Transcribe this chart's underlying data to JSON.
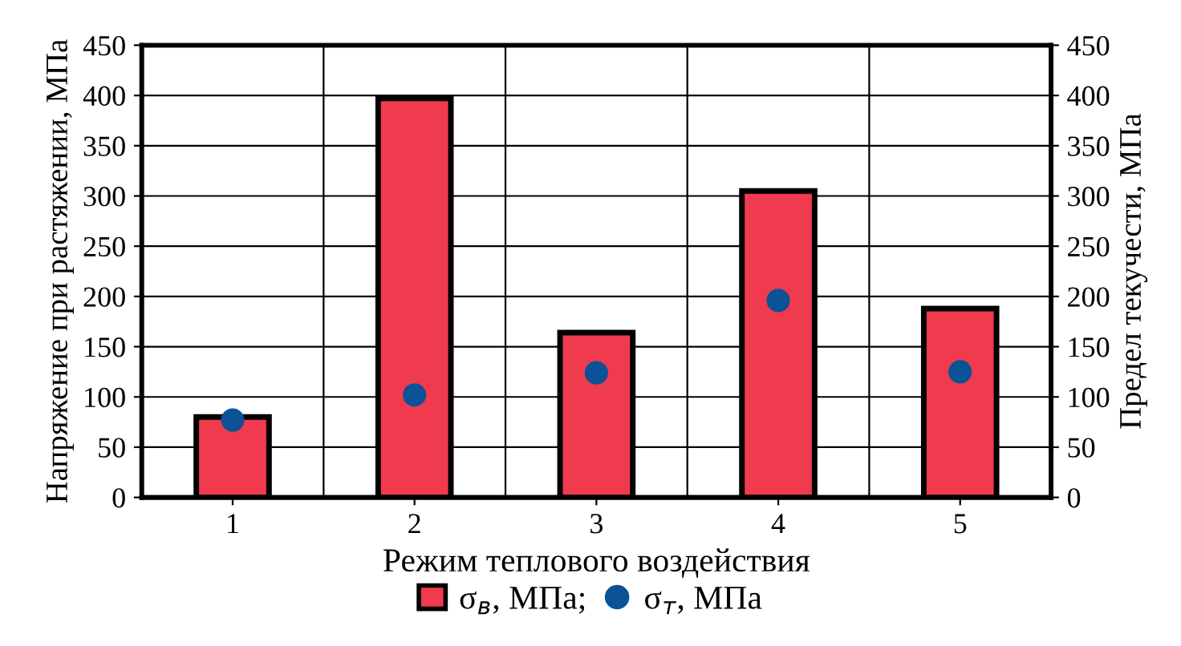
{
  "chart_data": {
    "type": "bar",
    "xlabel": "Режим теплового воздействия",
    "ylabel": "Напряжение при растяжении, МПа",
    "y2label": "Предел текучести, МПа",
    "categories": [
      "1",
      "2",
      "3",
      "4",
      "5"
    ],
    "series": [
      {
        "name": "σ$_{в}$, МПа;",
        "color": "#f03a4e",
        "values": [
          80,
          397,
          164,
          305,
          188
        ]
      },
      {
        "name": "σ$_{т}$, МПа",
        "type": "scatter",
        "axis": "y2",
        "color": "#0b5296",
        "values": [
          77,
          102,
          124,
          196,
          125
        ]
      }
    ],
    "ylim": [
      0,
      450
    ],
    "yticks": [
      0,
      50,
      100,
      150,
      200,
      250,
      300,
      350,
      400,
      450
    ],
    "y2lim": [
      0,
      450
    ],
    "y2ticks": [
      0,
      50,
      100,
      150,
      200,
      250,
      300,
      350,
      400,
      450
    ],
    "grid": true,
    "legend": "bottom",
    "marker": "circle"
  }
}
